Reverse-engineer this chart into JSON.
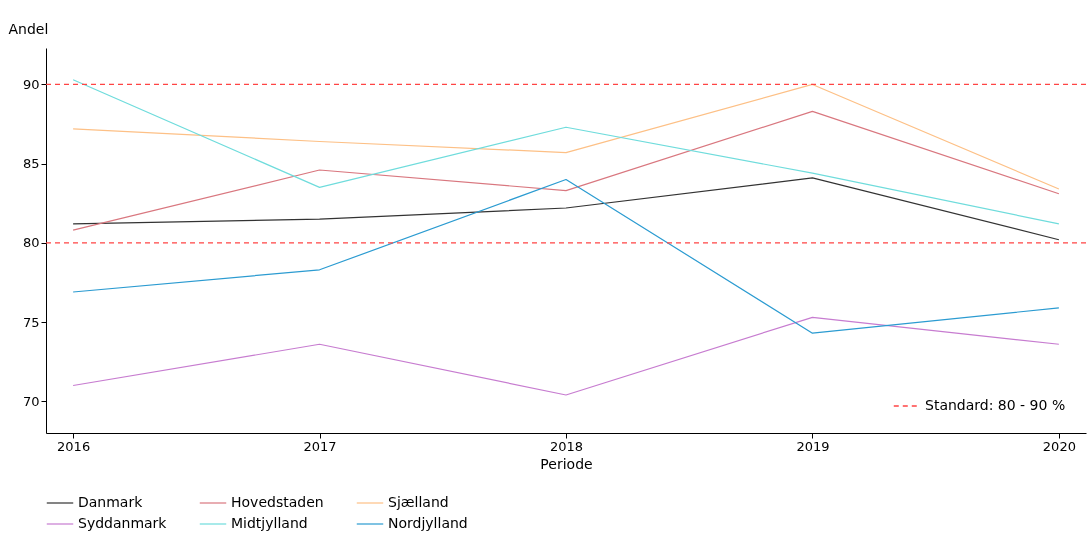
{
  "chart_data": {
    "type": "line",
    "xlabel": "Periode",
    "ylabel": "Andel",
    "x": [
      2016,
      2017,
      2018,
      2019,
      2020
    ],
    "xlim": [
      2015.89,
      2020.11
    ],
    "xticks": [
      2016,
      2017,
      2018,
      2019,
      2020
    ],
    "ylim": [
      68,
      92.3
    ],
    "yticks": [
      70,
      75,
      80,
      85,
      90
    ],
    "grid": false,
    "legend": "bottom",
    "line_style": "solid",
    "marker": "none",
    "series": [
      {
        "name": "Danmark",
        "color": "#333333",
        "values": [
          81.2,
          81.5,
          82.2,
          84.1,
          80.2
        ]
      },
      {
        "name": "Hovedstaden",
        "color": "#d9777f",
        "values": [
          80.8,
          84.6,
          83.3,
          88.3,
          83.1
        ]
      },
      {
        "name": "Sjælland",
        "color": "#fdc086",
        "values": [
          87.2,
          86.4,
          85.7,
          90.0,
          83.4
        ]
      },
      {
        "name": "Syddanmark",
        "color": "#c77cd0",
        "values": [
          71.0,
          73.6,
          70.4,
          75.3,
          73.6
        ]
      },
      {
        "name": "Midtjylland",
        "color": "#6fdcdc",
        "values": [
          90.3,
          83.5,
          87.3,
          84.4,
          81.2
        ]
      },
      {
        "name": "Nordjylland",
        "color": "#2b9bd1",
        "values": [
          76.9,
          78.3,
          84.0,
          74.3,
          75.9
        ]
      }
    ],
    "ref_lines": [
      {
        "axis": "y",
        "value": 80,
        "label": "Standard: 80 - 90 %",
        "color": "#ff4444",
        "line_style": "dashed"
      },
      {
        "axis": "y",
        "value": 90,
        "color": "#ff4444",
        "line_style": "dashed"
      }
    ]
  }
}
